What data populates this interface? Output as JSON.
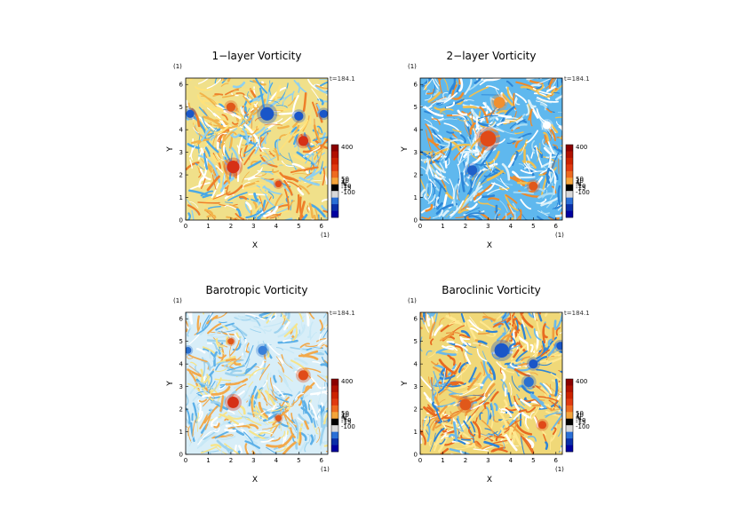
{
  "chart_data": [
    {
      "type": "heatmap",
      "title": "1−layer Vorticity",
      "xlabel": "X",
      "ylabel": "Y",
      "xlim": [
        0,
        6.283
      ],
      "ylim": [
        0,
        6.283
      ],
      "x_ticks": [
        "0",
        "1",
        "2",
        "3",
        "4",
        "5",
        "6"
      ],
      "y_ticks": [
        "0",
        "1",
        "2",
        "3",
        "4",
        "5",
        "6"
      ],
      "unit_x": "(1)",
      "unit_y": "(1)",
      "time_label": "t=184.1",
      "colorbar_labels": [
        "400",
        "50",
        "10",
        "4",
        "-4",
        "-10",
        "-15",
        "-100"
      ],
      "colorbar_colors": [
        "#8b0000",
        "#b01000",
        "#cc2200",
        "#e03a10",
        "#ee6a20",
        "#f4a43a",
        "#000000",
        "#d8d8d8",
        "#2a6fd6",
        "#0a2fa8",
        "#0000a0"
      ]
    },
    {
      "type": "heatmap",
      "title": "2−layer Vorticity",
      "xlabel": "X",
      "ylabel": "Y",
      "xlim": [
        0,
        6.283
      ],
      "ylim": [
        0,
        6.283
      ],
      "x_ticks": [
        "0",
        "1",
        "2",
        "3",
        "4",
        "5",
        "6"
      ],
      "y_ticks": [
        "0",
        "1",
        "2",
        "3",
        "4",
        "5",
        "6"
      ],
      "unit_x": "(1)",
      "unit_y": "(1)",
      "time_label": "t=184.1",
      "colorbar_labels": [
        "400",
        "50",
        "10",
        "4",
        "-4",
        "-10",
        "-15",
        "-100"
      ],
      "colorbar_colors": [
        "#8b0000",
        "#b01000",
        "#cc2200",
        "#e03a10",
        "#ee6a20",
        "#f4a43a",
        "#000000",
        "#d8d8d8",
        "#2a6fd6",
        "#0a2fa8",
        "#0000a0"
      ]
    },
    {
      "type": "heatmap",
      "title": "Barotropic Vorticity",
      "xlabel": "X",
      "ylabel": "Y",
      "xlim": [
        0,
        6.283
      ],
      "ylim": [
        0,
        6.283
      ],
      "x_ticks": [
        "0",
        "1",
        "2",
        "3",
        "4",
        "5",
        "6"
      ],
      "y_ticks": [
        "0",
        "1",
        "2",
        "3",
        "4",
        "5",
        "6"
      ],
      "unit_x": "(1)",
      "unit_y": "(1)",
      "time_label": "t=184.1",
      "colorbar_labels": [
        "400",
        "50",
        "10",
        "4",
        "-4",
        "-10",
        "-15",
        "-100"
      ],
      "colorbar_colors": [
        "#8b0000",
        "#b01000",
        "#cc2200",
        "#e03a10",
        "#ee6a20",
        "#f4a43a",
        "#000000",
        "#d8d8d8",
        "#2a6fd6",
        "#0a2fa8",
        "#0000a0"
      ]
    },
    {
      "type": "heatmap",
      "title": "Baroclinic Vorticity",
      "xlabel": "X",
      "ylabel": "Y",
      "xlim": [
        0,
        6.283
      ],
      "ylim": [
        0,
        6.283
      ],
      "x_ticks": [
        "0",
        "1",
        "2",
        "3",
        "4",
        "5",
        "6"
      ],
      "y_ticks": [
        "0",
        "1",
        "2",
        "3",
        "4",
        "5",
        "6"
      ],
      "unit_x": "(1)",
      "unit_y": "(1)",
      "time_label": "t=184.1",
      "colorbar_labels": [
        "400",
        "50",
        "10",
        "4",
        "-4",
        "-10",
        "-15",
        "-100"
      ],
      "colorbar_colors": [
        "#8b0000",
        "#b01000",
        "#cc2200",
        "#e03a10",
        "#ee6a20",
        "#f4a43a",
        "#000000",
        "#d8d8d8",
        "#2a6fd6",
        "#0a2fa8",
        "#0000a0"
      ]
    }
  ]
}
